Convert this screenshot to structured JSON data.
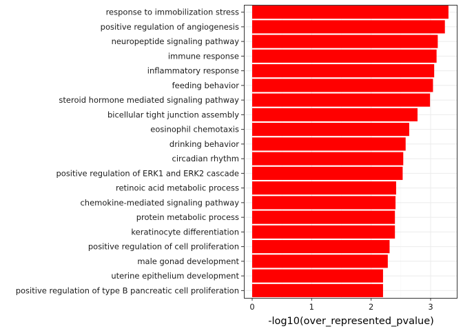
{
  "chart_data": {
    "type": "bar",
    "orientation": "horizontal",
    "title": "",
    "xlabel": "-log10(over_represented_pvalue)",
    "ylabel": "",
    "xlim": [
      0,
      3.4
    ],
    "xticks": [
      0,
      1,
      2,
      3
    ],
    "grid": true,
    "legend": "none",
    "bar_color": "#ff0000",
    "categories": [
      "response to immobilization stress",
      "positive regulation of angiogenesis",
      "neuropeptide signaling pathway",
      "immune response",
      "inflammatory response",
      "feeding behavior",
      "steroid hormone mediated signaling pathway",
      "bicellular tight junction assembly",
      "eosinophil chemotaxis",
      "drinking behavior",
      "circadian rhythm",
      "positive regulation of ERK1 and ERK2 cascade",
      "retinoic acid metabolic process",
      "chemokine-mediated signaling pathway",
      "protein metabolic process",
      "keratinocyte differentiation",
      "positive regulation of cell proliferation",
      "male gonad development",
      "uterine epithelium development",
      "positive regulation of type B pancreatic cell proliferation"
    ],
    "values": [
      3.3,
      3.24,
      3.12,
      3.1,
      3.06,
      3.04,
      2.99,
      2.78,
      2.64,
      2.58,
      2.54,
      2.53,
      2.42,
      2.41,
      2.4,
      2.4,
      2.31,
      2.28,
      2.2,
      2.2
    ]
  }
}
